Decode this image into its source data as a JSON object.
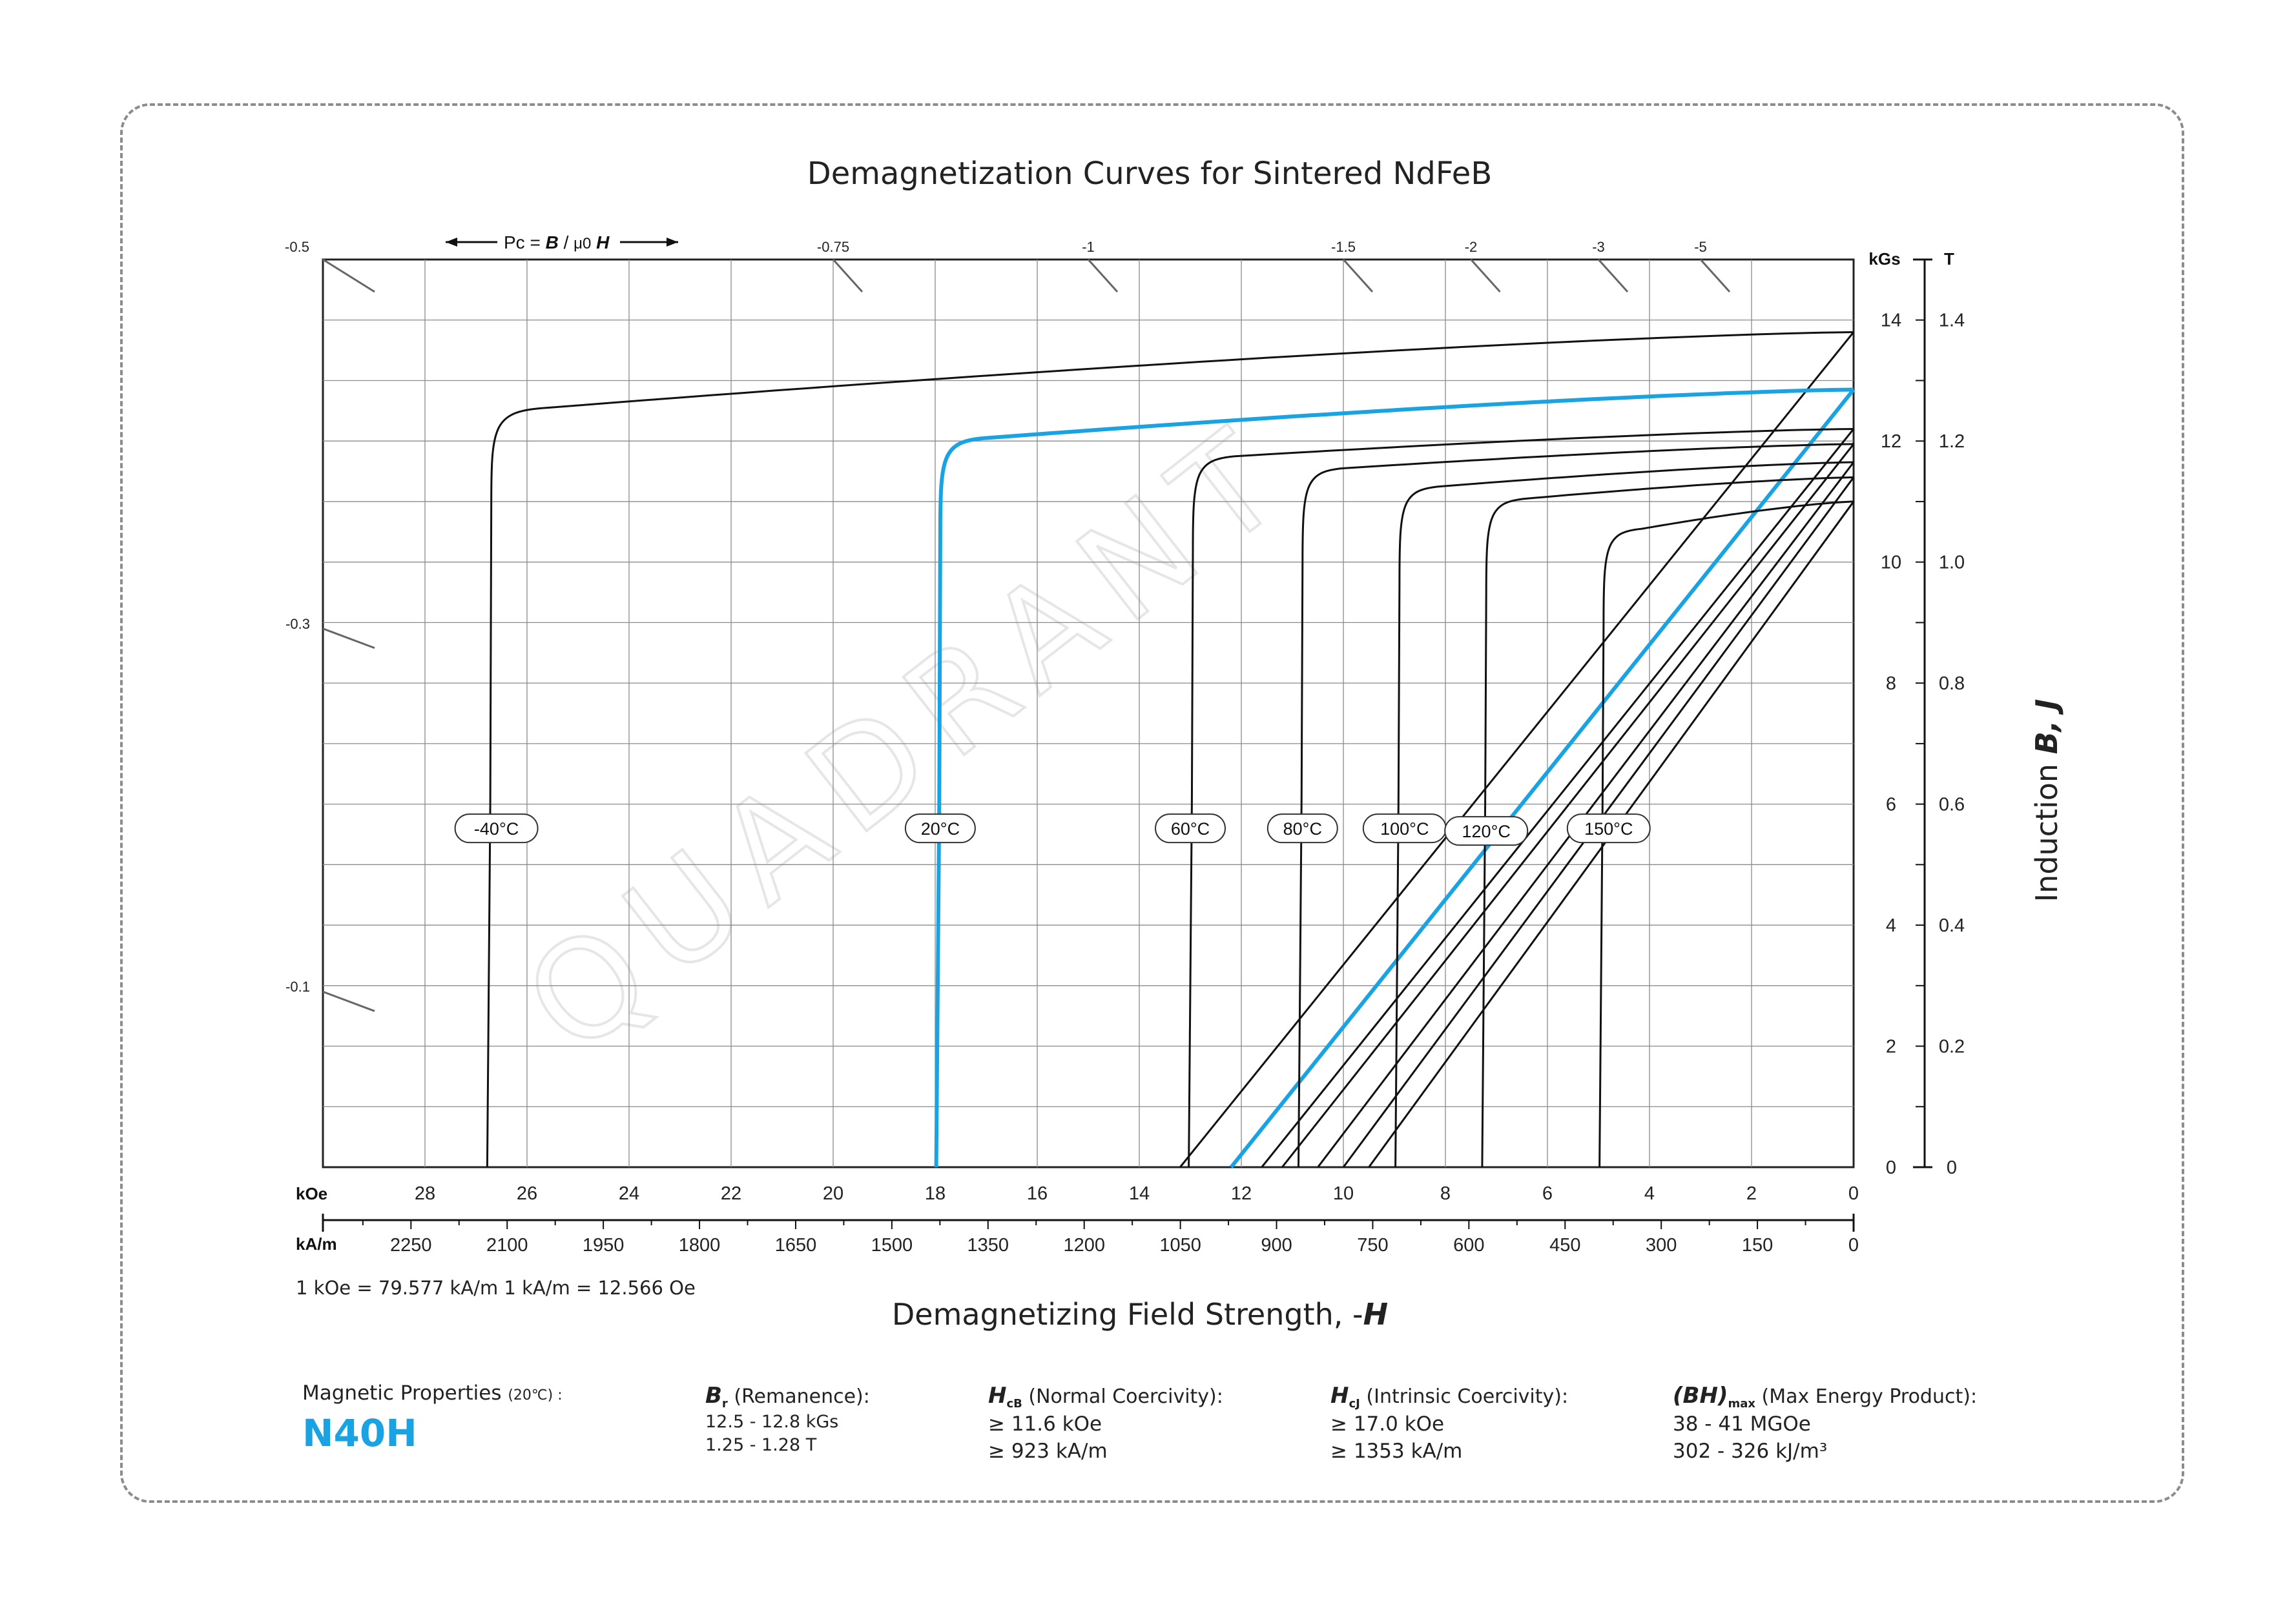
{
  "title": "Demagnetization Curves for Sintered NdFeB",
  "x_axis_title_prefix": "Demagnetizing Field Strength, -",
  "x_axis_title_var": "H",
  "y_axis_title_prefix": "Induction  ",
  "y_axis_title_vars": "B,  J",
  "conversion_note": "1 kOe = 79.577 kA/m   1 kA/m = 12.566 Oe",
  "pc_label": "Pc = B / μ0 H",
  "watermark": "QUADRANT",
  "properties": {
    "heading": "Magnetic Properties",
    "heading_temp": "(20℃) :",
    "grade": "N40H",
    "br": {
      "symbol": "B",
      "sub": "r",
      "label": "(Remanence):",
      "line1": "12.5 - 12.8 kGs",
      "line2": "1.25 - 1.28 T"
    },
    "hcb": {
      "symbol": "H",
      "sub": "cB",
      "label": "(Normal Coercivity):",
      "line1": "≥ 11.6 kOe",
      "line2": "≥ 923 kA/m"
    },
    "hcj": {
      "symbol": "H",
      "sub": "cJ",
      "label": "(Intrinsic Coercivity):",
      "line1": "≥ 17.0 kOe",
      "line2": "≥ 1353 kA/m"
    },
    "bhmax": {
      "symbol": "(BH)",
      "sub": "max",
      "label": "(Max Energy Product):",
      "line1": "38 - 41 MGOe",
      "line2": "302 - 326 kJ/m³"
    }
  },
  "colors": {
    "highlight": "#1aa3e3",
    "curve": "#111111",
    "grid": "#8a8a8a"
  },
  "chart_data": {
    "type": "line",
    "xlabel": "Demagnetizing Field Strength, -H",
    "ylabel": "Induction B, J",
    "x_unit": "kOe",
    "x_unit_secondary": "kA/m",
    "y_unit": "kGs",
    "y_unit_secondary": "T",
    "xlim": [
      30,
      0
    ],
    "ylim": [
      0,
      15
    ],
    "x_ticks_koe": [
      "28",
      "26",
      "24",
      "22",
      "20",
      "18",
      "16",
      "14",
      "12",
      "10",
      "8",
      "6",
      "4",
      "2",
      "0"
    ],
    "x_ticks_kam": [
      "2250",
      "2100",
      "1950",
      "1800",
      "1650",
      "1500",
      "1350",
      "1200",
      "1050",
      "900",
      "750",
      "600",
      "450",
      "300",
      "150",
      "0"
    ],
    "y_ticks_kgs": [
      "0",
      "2",
      "4",
      "6",
      "8",
      "10",
      "12",
      "14"
    ],
    "y_ticks_t": [
      "0",
      "0.2",
      "0.4",
      "0.6",
      "0.8",
      "1.0",
      "1.2",
      "1.4"
    ],
    "pc_ticks": [
      "-0.5",
      "-0.75",
      "-1",
      "-1.5",
      "-2",
      "-3",
      "-5",
      "-0.3",
      "-0.1"
    ],
    "grid": true,
    "series": [
      {
        "name": "-40°C",
        "br": 13.8,
        "hcj": 26.7,
        "knee_h": 26.0,
        "knee_j": 12.2,
        "highlight": false
      },
      {
        "name": "20°C",
        "br": 12.85,
        "hcj": 17.9,
        "knee_h": 17.4,
        "knee_j": 11.7,
        "highlight": true
      },
      {
        "name": "60°C",
        "br": 12.2,
        "hcj": 12.95,
        "knee_h": 12.5,
        "knee_j": 11.4,
        "highlight": false
      },
      {
        "name": "80°C",
        "br": 11.95,
        "hcj": 10.8,
        "knee_h": 10.4,
        "knee_j": 11.2,
        "highlight": false
      },
      {
        "name": "100°C",
        "br": 11.65,
        "hcj": 8.9,
        "knee_h": 8.5,
        "knee_j": 10.9,
        "highlight": false
      },
      {
        "name": "120°C",
        "br": 11.4,
        "hcj": 7.2,
        "knee_h": 6.8,
        "knee_j": 10.7,
        "highlight": false
      },
      {
        "name": "150°C",
        "br": 11.0,
        "hcj": 4.9,
        "knee_h": 4.55,
        "knee_j": 10.2,
        "highlight": false
      }
    ],
    "label_positions_koe": [
      26.6,
      17.9,
      13.0,
      10.8,
      8.8,
      7.2,
      4.8
    ],
    "b_lines": [
      {
        "name": "-40°C",
        "br": 13.8,
        "hcb": 13.2
      },
      {
        "name": "20°C",
        "br": 12.85,
        "hcb": 12.2,
        "highlight": true
      },
      {
        "name": "60°C",
        "br": 12.2,
        "hcb": 11.6
      },
      {
        "name": "80°C",
        "br": 11.95,
        "hcb": 11.2
      },
      {
        "name": "100°C",
        "br": 11.65,
        "hcb": 10.5
      },
      {
        "name": "120°C",
        "br": 11.4,
        "hcb": 10.0
      },
      {
        "name": "150°C",
        "br": 11.0,
        "hcb": 9.5
      }
    ]
  }
}
